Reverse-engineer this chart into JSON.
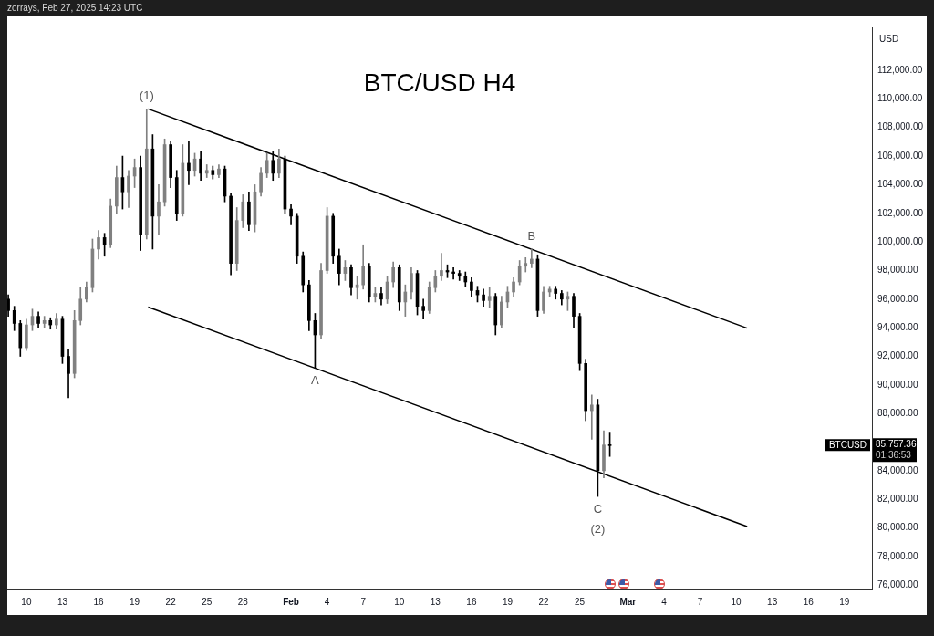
{
  "chart_data": {
    "type": "candlestick",
    "title": "BTC/USD H4",
    "ylabel": "USD",
    "x": [
      "2025-01-08T12:00",
      "2025-01-09T00:00",
      "2025-01-09T12:00",
      "2025-01-10T00:00",
      "2025-01-10T12:00",
      "2025-01-11T00:00",
      "2025-01-11T12:00",
      "2025-01-12T00:00",
      "2025-01-12T12:00",
      "2025-01-13T00:00",
      "2025-01-13T12:00",
      "2025-01-14T00:00",
      "2025-01-14T12:00",
      "2025-01-15T00:00",
      "2025-01-15T12:00",
      "2025-01-16T00:00",
      "2025-01-16T12:00",
      "2025-01-17T00:00",
      "2025-01-17T12:00",
      "2025-01-18T00:00",
      "2025-01-18T12:00",
      "2025-01-19T00:00",
      "2025-01-19T12:00",
      "2025-01-20T00:00",
      "2025-01-20T12:00",
      "2025-01-21T00:00",
      "2025-01-21T12:00",
      "2025-01-22T00:00",
      "2025-01-22T12:00",
      "2025-01-23T00:00",
      "2025-01-23T12:00",
      "2025-01-24T00:00",
      "2025-01-24T12:00",
      "2025-01-25T00:00",
      "2025-01-25T12:00",
      "2025-01-26T00:00",
      "2025-01-26T12:00",
      "2025-01-27T00:00",
      "2025-01-27T12:00",
      "2025-01-28T00:00",
      "2025-01-28T12:00",
      "2025-01-29T00:00",
      "2025-01-29T12:00",
      "2025-01-30T00:00",
      "2025-01-30T12:00",
      "2025-01-31T00:00",
      "2025-01-31T12:00",
      "2025-02-01T00:00",
      "2025-02-01T12:00",
      "2025-02-02T00:00",
      "2025-02-02T12:00",
      "2025-02-03T00:00",
      "2025-02-03T12:00",
      "2025-02-04T00:00",
      "2025-02-04T12:00",
      "2025-02-05T00:00",
      "2025-02-05T12:00",
      "2025-02-06T00:00",
      "2025-02-06T12:00",
      "2025-02-07T00:00",
      "2025-02-07T12:00",
      "2025-02-08T00:00",
      "2025-02-08T12:00",
      "2025-02-09T00:00",
      "2025-02-09T12:00",
      "2025-02-10T00:00",
      "2025-02-10T12:00",
      "2025-02-11T00:00",
      "2025-02-11T12:00",
      "2025-02-12T00:00",
      "2025-02-12T12:00",
      "2025-02-13T00:00",
      "2025-02-13T12:00",
      "2025-02-14T00:00",
      "2025-02-14T12:00",
      "2025-02-15T00:00",
      "2025-02-15T12:00",
      "2025-02-16T00:00",
      "2025-02-16T12:00",
      "2025-02-17T00:00",
      "2025-02-17T12:00",
      "2025-02-18T00:00",
      "2025-02-18T12:00",
      "2025-02-19T00:00",
      "2025-02-19T12:00",
      "2025-02-20T00:00",
      "2025-02-20T12:00",
      "2025-02-21T00:00",
      "2025-02-21T12:00",
      "2025-02-22T00:00",
      "2025-02-22T12:00",
      "2025-02-23T00:00",
      "2025-02-23T12:00",
      "2025-02-24T00:00",
      "2025-02-24T12:00",
      "2025-02-25T00:00",
      "2025-02-25T12:00",
      "2025-02-26T00:00",
      "2025-02-26T12:00",
      "2025-02-27T00:00",
      "2025-02-27T12:00"
    ],
    "ohlc": [
      [
        96000,
        96300,
        94800,
        95200
      ],
      [
        95200,
        95500,
        93800,
        94300
      ],
      [
        94300,
        94500,
        92000,
        92600
      ],
      [
        92600,
        94600,
        92400,
        94200
      ],
      [
        94200,
        95300,
        93800,
        94800
      ],
      [
        94800,
        95100,
        94000,
        94300
      ],
      [
        94300,
        94800,
        94000,
        94500
      ],
      [
        94500,
        94700,
        93900,
        94200
      ],
      [
        94200,
        95000,
        93900,
        94600
      ],
      [
        94600,
        94800,
        91500,
        92000
      ],
      [
        92000,
        92500,
        89100,
        90800
      ],
      [
        90800,
        95200,
        90500,
        94500
      ],
      [
        94500,
        96800,
        94200,
        96000
      ],
      [
        96000,
        97200,
        95800,
        96800
      ],
      [
        96800,
        100200,
        96500,
        99500
      ],
      [
        99500,
        100800,
        98800,
        100300
      ],
      [
        100300,
        100600,
        99000,
        99800
      ],
      [
        99800,
        103000,
        99600,
        102500
      ],
      [
        102500,
        105300,
        102000,
        104500
      ],
      [
        104500,
        106000,
        102300,
        103500
      ],
      [
        103500,
        105000,
        102400,
        104600
      ],
      [
        104600,
        105800,
        103800,
        105200
      ],
      [
        105200,
        106000,
        99400,
        100500
      ],
      [
        100500,
        109300,
        100200,
        106500
      ],
      [
        106500,
        107500,
        99500,
        101800
      ],
      [
        101800,
        104000,
        100500,
        102800
      ],
      [
        102800,
        107200,
        102500,
        106800
      ],
      [
        106800,
        107000,
        103800,
        104500
      ],
      [
        104500,
        105000,
        101500,
        102000
      ],
      [
        102000,
        106800,
        101800,
        105500
      ],
      [
        105500,
        107000,
        104000,
        105000
      ],
      [
        105000,
        106200,
        104600,
        105800
      ],
      [
        105800,
        106300,
        104300,
        104800
      ],
      [
        104800,
        105400,
        104500,
        105000
      ],
      [
        105000,
        105300,
        104400,
        104700
      ],
      [
        104700,
        105400,
        104500,
        105100
      ],
      [
        105100,
        105300,
        102800,
        103200
      ],
      [
        103200,
        103400,
        97700,
        98500
      ],
      [
        98500,
        102400,
        98000,
        101500
      ],
      [
        101500,
        103300,
        101000,
        102800
      ],
      [
        102800,
        103500,
        100800,
        101200
      ],
      [
        101200,
        104000,
        100700,
        103500
      ],
      [
        103500,
        105200,
        103200,
        104800
      ],
      [
        104800,
        106200,
        104500,
        105700
      ],
      [
        105700,
        106300,
        104300,
        104800
      ],
      [
        104800,
        106500,
        104500,
        105800
      ],
      [
        105800,
        106000,
        102000,
        102300
      ],
      [
        102300,
        102600,
        101200,
        101800
      ],
      [
        101800,
        102000,
        98500,
        99000
      ],
      [
        99000,
        99300,
        96500,
        97000
      ],
      [
        97000,
        97300,
        93800,
        94500
      ],
      [
        94500,
        95000,
        91200,
        93500
      ],
      [
        93500,
        98500,
        93200,
        98000
      ],
      [
        98000,
        102400,
        97800,
        101800
      ],
      [
        101800,
        102000,
        98500,
        99000
      ],
      [
        99000,
        99500,
        97000,
        97800
      ],
      [
        97800,
        98700,
        97300,
        98200
      ],
      [
        98200,
        98400,
        96300,
        96800
      ],
      [
        96800,
        97600,
        96000,
        97000
      ],
      [
        97000,
        99800,
        96700,
        98300
      ],
      [
        98300,
        98500,
        95800,
        96200
      ],
      [
        96200,
        96800,
        95800,
        96400
      ],
      [
        96400,
        96800,
        95600,
        96000
      ],
      [
        96000,
        97600,
        95700,
        97200
      ],
      [
        97200,
        98600,
        96800,
        98200
      ],
      [
        98200,
        98400,
        95200,
        95800
      ],
      [
        95800,
        97000,
        94800,
        96500
      ],
      [
        96500,
        98200,
        96000,
        97800
      ],
      [
        97800,
        98000,
        94900,
        95500
      ],
      [
        95500,
        96000,
        94600,
        95200
      ],
      [
        95200,
        97200,
        95000,
        96800
      ],
      [
        96800,
        98000,
        96500,
        97600
      ],
      [
        97600,
        99200,
        97300,
        98000
      ],
      [
        98000,
        98400,
        97500,
        97900
      ],
      [
        97900,
        98200,
        97400,
        97800
      ],
      [
        97800,
        98000,
        97300,
        97600
      ],
      [
        97600,
        97900,
        96900,
        97200
      ],
      [
        97200,
        97500,
        96200,
        96600
      ],
      [
        96600,
        96900,
        95800,
        96300
      ],
      [
        96300,
        96700,
        95500,
        95900
      ],
      [
        95900,
        96800,
        95400,
        96200
      ],
      [
        96200,
        96400,
        93500,
        94200
      ],
      [
        94200,
        96200,
        94000,
        95800
      ],
      [
        95800,
        96900,
        95400,
        96500
      ],
      [
        96500,
        97500,
        96200,
        97200
      ],
      [
        97200,
        98700,
        97000,
        98300
      ],
      [
        98300,
        98900,
        97900,
        98500
      ],
      [
        98500,
        99500,
        98200,
        98800
      ],
      [
        98800,
        99100,
        94800,
        95200
      ],
      [
        95200,
        96900,
        95000,
        96500
      ],
      [
        96500,
        96900,
        96200,
        96700
      ],
      [
        96700,
        96900,
        96000,
        96400
      ],
      [
        96400,
        96600,
        95600,
        96000
      ],
      [
        96000,
        96500,
        95200,
        96200
      ],
      [
        96200,
        96400,
        94000,
        94800
      ],
      [
        94800,
        95000,
        91000,
        91500
      ],
      [
        91500,
        91800,
        87500,
        88200
      ],
      [
        88200,
        89300,
        86200,
        88600
      ],
      [
        88600,
        89000,
        82200,
        84000
      ],
      [
        84000,
        86800,
        83500,
        85800
      ],
      [
        85800,
        86700,
        85000,
        85757.36
      ]
    ],
    "colors": [
      "#000000",
      "#000000",
      "#000000",
      "#808080",
      "#808080",
      "#000000",
      "#808080",
      "#000000",
      "#808080",
      "#000000",
      "#000000",
      "#808080",
      "#808080",
      "#808080",
      "#808080",
      "#808080",
      "#000000",
      "#808080",
      "#808080",
      "#000000",
      "#808080",
      "#808080",
      "#000000",
      "#808080",
      "#000000",
      "#808080",
      "#808080",
      "#000000",
      "#000000",
      "#808080",
      "#000000",
      "#808080",
      "#000000",
      "#808080",
      "#000000",
      "#808080",
      "#000000",
      "#000000",
      "#808080",
      "#808080",
      "#000000",
      "#808080",
      "#808080",
      "#808080",
      "#000000",
      "#808080",
      "#000000",
      "#000000",
      "#000000",
      "#000000",
      "#000000",
      "#000000",
      "#808080",
      "#808080",
      "#000000",
      "#000000",
      "#808080",
      "#000000",
      "#808080",
      "#808080",
      "#000000",
      "#808080",
      "#000000",
      "#808080",
      "#808080",
      "#000000",
      "#808080",
      "#808080",
      "#000000",
      "#000000",
      "#808080",
      "#808080",
      "#808080",
      "#000000",
      "#000000",
      "#000000",
      "#000000",
      "#000000",
      "#000000",
      "#000000",
      "#808080",
      "#000000",
      "#808080",
      "#808080",
      "#808080",
      "#808080",
      "#808080",
      "#808080",
      "#000000",
      "#808080",
      "#808080",
      "#000000",
      "#000000",
      "#808080",
      "#000000",
      "#000000",
      "#000000",
      "#808080",
      "#000000",
      "#808080",
      "#000000"
    ],
    "series": [
      {
        "type": "line",
        "color": "#000000",
        "x": [
          "2025-01-20T03:00",
          "2025-03-10T22:00"
        ],
        "values": [
          109300,
          93970
        ]
      },
      {
        "type": "line",
        "color": "#000000",
        "x": [
          "2025-01-20T03:00",
          "2025-03-10T22:00"
        ],
        "values": [
          95450,
          80100
        ]
      }
    ],
    "xlim": [
      "2025-01-08T10:00",
      "2025-03-21T07:00"
    ],
    "xticks": [
      {
        "value": "2025-01-10",
        "label": "10"
      },
      {
        "value": "2025-01-13",
        "label": "13"
      },
      {
        "value": "2025-01-16",
        "label": "16"
      },
      {
        "value": "2025-01-19",
        "label": "19"
      },
      {
        "value": "2025-01-22",
        "label": "22"
      },
      {
        "value": "2025-01-25",
        "label": "25"
      },
      {
        "value": "2025-01-28",
        "label": "28"
      },
      {
        "value": "2025-02-01",
        "label": "Feb"
      },
      {
        "value": "2025-02-04",
        "label": "4"
      },
      {
        "value": "2025-02-07",
        "label": "7"
      },
      {
        "value": "2025-02-10",
        "label": "10"
      },
      {
        "value": "2025-02-13",
        "label": "13"
      },
      {
        "value": "2025-02-16",
        "label": "16"
      },
      {
        "value": "2025-02-19",
        "label": "19"
      },
      {
        "value": "2025-02-22",
        "label": "22"
      },
      {
        "value": "2025-02-25",
        "label": "25"
      },
      {
        "value": "2025-03-01",
        "label": "Mar"
      },
      {
        "value": "2025-03-04",
        "label": "4"
      },
      {
        "value": "2025-03-07",
        "label": "7"
      },
      {
        "value": "2025-03-10",
        "label": "10"
      },
      {
        "value": "2025-03-13",
        "label": "13"
      },
      {
        "value": "2025-03-16",
        "label": "16"
      },
      {
        "value": "2025-03-19",
        "label": "19"
      }
    ],
    "ylim": [
      75700,
      115000
    ],
    "yticks": [
      {
        "value": 76000,
        "label": "76,000.00"
      },
      {
        "value": 78000,
        "label": "78,000.00"
      },
      {
        "value": 80000,
        "label": "80,000.00"
      },
      {
        "value": 82000,
        "label": "82,000.00"
      },
      {
        "value": 84000,
        "label": "84,000.00"
      },
      {
        "value": 88000,
        "label": "88,000.00"
      },
      {
        "value": 90000,
        "label": "90,000.00"
      },
      {
        "value": 92000,
        "label": "92,000.00"
      },
      {
        "value": 94000,
        "label": "94,000.00"
      },
      {
        "value": 96000,
        "label": "96,000.00"
      },
      {
        "value": 98000,
        "label": "98,000.00"
      },
      {
        "value": 100000,
        "label": "100,000.00"
      },
      {
        "value": 102000,
        "label": "102,000.00"
      },
      {
        "value": 104000,
        "label": "104,000.00"
      },
      {
        "value": 106000,
        "label": "106,000.00"
      },
      {
        "value": 108000,
        "label": "108,000.00"
      },
      {
        "value": 110000,
        "label": "110,000.00"
      },
      {
        "value": 112000,
        "label": "112,000.00"
      }
    ],
    "annotations": [
      "zorrays, Feb 27, 2025 14:23 UTC",
      {
        "text": "(1)",
        "x": "2025-01-20T00:00",
        "y": 109300
      },
      {
        "text": "A",
        "x": "2025-02-03T00:00",
        "y": 91200
      },
      {
        "text": "B",
        "x": "2025-02-21T00:00",
        "y": 99500
      },
      {
        "text": "C",
        "x": "2025-02-26T12:00",
        "y": 82200
      },
      {
        "text": "(2)",
        "x": "2025-02-26T12:00",
        "y": 82200
      },
      "BTCUSD",
      "85,757.36",
      "01:36:53"
    ]
  }
}
